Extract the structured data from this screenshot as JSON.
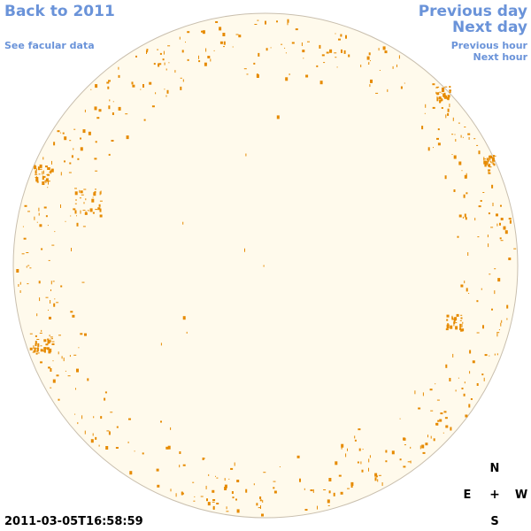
{
  "nav": {
    "back_label": "Back to 2011",
    "facular_label": "See facular data",
    "prev_day_label": "Previous day",
    "next_day_label": "Next day",
    "prev_hour_label": "Previous hour",
    "next_hour_label": "Next hour"
  },
  "timestamp": "2011-03-05T16:58:59",
  "compass": {
    "north": "N",
    "south": "S",
    "east": "E",
    "west": "W",
    "center": "+"
  },
  "colors": {
    "disk_fill": "#fffaec",
    "disk_stroke": "#c9bfae",
    "facula": "#e68a00",
    "link": "#6a93d9"
  }
}
